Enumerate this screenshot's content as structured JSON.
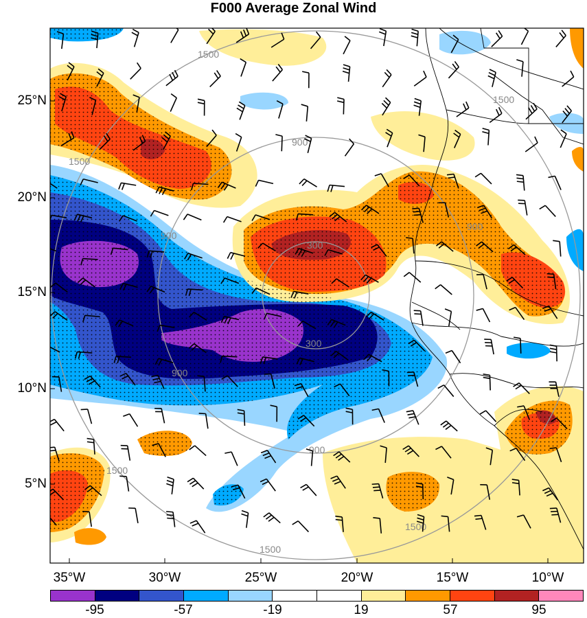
{
  "title": "F000 Average Zonal Wind",
  "lat_labels": [
    "25°N",
    "20°N",
    "15°N",
    "10°N",
    "5°N"
  ],
  "lon_labels": [
    "35°W",
    "30°W",
    "25°W",
    "20°W",
    "15°W",
    "10°W"
  ],
  "range_ring_labels": [
    "300",
    "300",
    "900",
    "900",
    "900",
    "900",
    "900",
    "1500",
    "1500",
    "1500",
    "1500",
    "1500",
    "1500"
  ],
  "colorbar": {
    "colors": [
      "#9933cc",
      "#000080",
      "#3355cc",
      "#00aaff",
      "#99d6ff",
      "#ffffff",
      "#ffffff",
      "#ffee99",
      "#ff9900",
      "#ff4411",
      "#b22222",
      "#ff88bb"
    ],
    "labels": [
      "-95",
      "-57",
      "-19",
      "19",
      "57",
      "95"
    ]
  },
  "shading_colors": {
    "purple": "#9933cc",
    "navy": "#000080",
    "blue": "#3355cc",
    "sky": "#00aaff",
    "light_blue": "#99d6ff",
    "yellow": "#ffee99",
    "orange": "#ff9900",
    "red_orange": "#ff4411",
    "dark_red": "#b22222"
  },
  "icons": [
    "wind-barb-icon",
    "range-ring-icon",
    "coastline-icon"
  ]
}
